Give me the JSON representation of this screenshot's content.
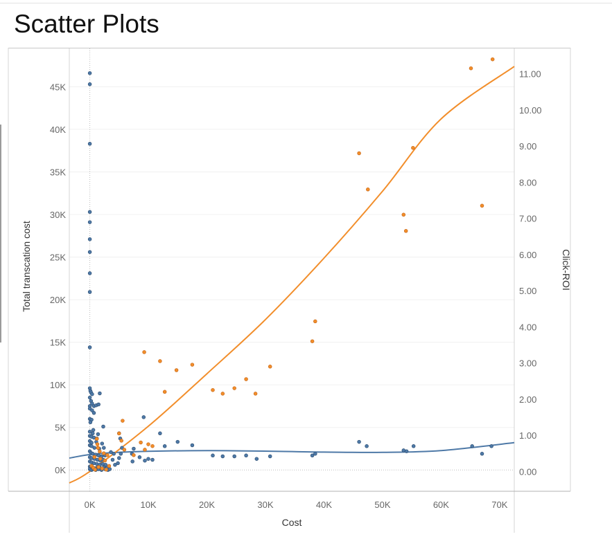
{
  "header": {
    "title": "Scatter Plots"
  },
  "chart_data": {
    "type": "scatter",
    "title": "Scatter Plots",
    "xlabel": "Cost",
    "ylabel": "Total transcation cost",
    "y2label": "Click-ROI",
    "xlim": [
      -3500,
      72500
    ],
    "ylim": [
      -2500,
      49500
    ],
    "y2lim": [
      -0.55,
      11.7
    ],
    "x_ticks": [
      0,
      10000,
      20000,
      30000,
      40000,
      50000,
      60000,
      70000
    ],
    "x_tick_labels": [
      "0K",
      "10K",
      "20K",
      "30K",
      "40K",
      "50K",
      "60K",
      "70K"
    ],
    "y_ticks": [
      0,
      5000,
      10000,
      15000,
      20000,
      25000,
      30000,
      35000,
      40000,
      45000
    ],
    "y_tick_labels": [
      "0K",
      "5K",
      "10K",
      "15K",
      "20K",
      "25K",
      "30K",
      "35K",
      "40K",
      "45K"
    ],
    "y2_ticks": [
      0,
      1,
      2,
      3,
      4,
      5,
      6,
      7,
      8,
      9,
      10,
      11
    ],
    "y2_tick_labels": [
      "0.00",
      "1.00",
      "2.00",
      "3.00",
      "4.00",
      "5.00",
      "6.00",
      "7.00",
      "8.00",
      "9.00",
      "10.00",
      "11.00"
    ],
    "grid": true,
    "legend": "none",
    "colors": {
      "blue": "#4e79a7",
      "orange": "#f28e2b",
      "blue_edge": "#2e4f73",
      "orange_edge": "#c8691a"
    },
    "series": [
      {
        "axis": "left",
        "color": "#4e79a7",
        "points": [
          [
            0,
            46600
          ],
          [
            0,
            45300
          ],
          [
            0,
            38300
          ],
          [
            0,
            30300
          ],
          [
            0,
            29100
          ],
          [
            0,
            27100
          ],
          [
            0,
            25600
          ],
          [
            0,
            23100
          ],
          [
            0,
            20900
          ],
          [
            0,
            14400
          ],
          [
            0,
            9600
          ],
          [
            100,
            9300
          ],
          [
            200,
            9100
          ],
          [
            400,
            8900
          ],
          [
            1700,
            9000
          ],
          [
            0,
            8500
          ],
          [
            200,
            8100
          ],
          [
            400,
            7800
          ],
          [
            0,
            7500
          ],
          [
            700,
            7500
          ],
          [
            1100,
            7600
          ],
          [
            1500,
            7700
          ],
          [
            0,
            7200
          ],
          [
            400,
            7000
          ],
          [
            700,
            6700
          ],
          [
            0,
            6000
          ],
          [
            300,
            5900
          ],
          [
            100,
            5600
          ],
          [
            2300,
            5100
          ],
          [
            600,
            4700
          ],
          [
            0,
            4500
          ],
          [
            500,
            4300
          ],
          [
            1400,
            4200
          ],
          [
            0,
            4000
          ],
          [
            300,
            3900
          ],
          [
            700,
            3800
          ],
          [
            1200,
            3700
          ],
          [
            0,
            3400
          ],
          [
            300,
            3200
          ],
          [
            1100,
            3300
          ],
          [
            2100,
            3100
          ],
          [
            0,
            2900
          ],
          [
            300,
            2800
          ],
          [
            800,
            2600
          ],
          [
            1600,
            2500
          ],
          [
            2400,
            2600
          ],
          [
            0,
            2200
          ],
          [
            200,
            2000
          ],
          [
            500,
            1900
          ],
          [
            1000,
            1800
          ],
          [
            1500,
            1700
          ],
          [
            2000,
            1600
          ],
          [
            2600,
            1700
          ],
          [
            0,
            1500
          ],
          [
            300,
            1400
          ],
          [
            800,
            1300
          ],
          [
            1300,
            1200
          ],
          [
            1800,
            1100
          ],
          [
            2300,
            1200
          ],
          [
            0,
            1000
          ],
          [
            300,
            900
          ],
          [
            700,
            800
          ],
          [
            1200,
            700
          ],
          [
            1700,
            600
          ],
          [
            2200,
            700
          ],
          [
            2700,
            600
          ],
          [
            0,
            400
          ],
          [
            200,
            300
          ],
          [
            500,
            300
          ],
          [
            900,
            200
          ],
          [
            1400,
            300
          ],
          [
            1900,
            200
          ],
          [
            2400,
            300
          ],
          [
            2900,
            200
          ],
          [
            0,
            100
          ],
          [
            300,
            0
          ],
          [
            600,
            100
          ],
          [
            1000,
            0
          ],
          [
            1500,
            100
          ],
          [
            2000,
            0
          ],
          [
            2600,
            100
          ],
          [
            3100,
            0
          ],
          [
            3400,
            100
          ],
          [
            3600,
            2100
          ],
          [
            3900,
            1200
          ],
          [
            4300,
            600
          ],
          [
            4100,
            1900
          ],
          [
            5000,
            4300
          ],
          [
            5200,
            3700
          ],
          [
            5500,
            2600
          ],
          [
            5300,
            1900
          ],
          [
            5000,
            1400
          ],
          [
            4800,
            800
          ],
          [
            7500,
            2500
          ],
          [
            7200,
            1900
          ],
          [
            7300,
            1000
          ],
          [
            8500,
            1500
          ],
          [
            9200,
            6200
          ],
          [
            9400,
            1100
          ],
          [
            10000,
            1300
          ],
          [
            10700,
            1200
          ],
          [
            12000,
            4300
          ],
          [
            12800,
            2800
          ],
          [
            15000,
            3300
          ],
          [
            17500,
            2900
          ],
          [
            21000,
            1700
          ],
          [
            22700,
            1600
          ],
          [
            24700,
            1600
          ],
          [
            26700,
            1700
          ],
          [
            28500,
            1300
          ],
          [
            30800,
            1600
          ],
          [
            38000,
            1700
          ],
          [
            38500,
            1900
          ],
          [
            46000,
            3300
          ],
          [
            47300,
            2800
          ],
          [
            53600,
            2300
          ],
          [
            54100,
            2200
          ],
          [
            55300,
            2800
          ],
          [
            65300,
            2800
          ],
          [
            67000,
            1900
          ],
          [
            68600,
            2800
          ]
        ]
      },
      {
        "axis": "right",
        "color": "#f28e2b",
        "points": [
          [
            1200,
            0.9
          ],
          [
            1300,
            0.75
          ],
          [
            1400,
            0.65
          ],
          [
            1700,
            0.55
          ],
          [
            2400,
            0.5
          ],
          [
            800,
            0.4
          ],
          [
            1800,
            0.35
          ],
          [
            2600,
            0.3
          ],
          [
            3000,
            0.45
          ],
          [
            300,
            0.15
          ],
          [
            600,
            0.1
          ],
          [
            900,
            0.05
          ],
          [
            1500,
            0.12
          ],
          [
            2100,
            0.08
          ],
          [
            2800,
            0.05
          ],
          [
            3300,
            0.15
          ],
          [
            5000,
            1.05
          ],
          [
            5600,
            1.4
          ],
          [
            5400,
            0.85
          ],
          [
            5900,
            0.6
          ],
          [
            7500,
            0.45
          ],
          [
            8700,
            0.8
          ],
          [
            9400,
            0.6
          ],
          [
            10000,
            0.75
          ],
          [
            10700,
            0.7
          ],
          [
            9300,
            3.3
          ],
          [
            12000,
            3.05
          ],
          [
            12800,
            2.2
          ],
          [
            14800,
            2.8
          ],
          [
            17500,
            2.95
          ],
          [
            21000,
            2.25
          ],
          [
            22700,
            2.15
          ],
          [
            24700,
            2.3
          ],
          [
            26700,
            2.55
          ],
          [
            28300,
            2.15
          ],
          [
            30800,
            2.9
          ],
          [
            38000,
            3.6
          ],
          [
            38500,
            4.15
          ],
          [
            46000,
            8.8
          ],
          [
            47500,
            7.8
          ],
          [
            53600,
            7.1
          ],
          [
            54000,
            6.65
          ],
          [
            55200,
            8.95
          ],
          [
            65100,
            11.15
          ],
          [
            67000,
            7.35
          ],
          [
            68800,
            11.4
          ]
        ]
      }
    ],
    "trend_lines": [
      {
        "axis": "left",
        "color": "#4e79a7",
        "points": [
          [
            -3500,
            1400
          ],
          [
            3000,
            2000
          ],
          [
            20000,
            2280
          ],
          [
            40000,
            2100
          ],
          [
            50000,
            2070
          ],
          [
            60000,
            2280
          ],
          [
            72500,
            3200
          ]
        ]
      },
      {
        "axis": "right",
        "color": "#f28e2b",
        "points": [
          [
            -3500,
            -0.32
          ],
          [
            0,
            0.0
          ],
          [
            10000,
            1.25
          ],
          [
            20000,
            2.7
          ],
          [
            30000,
            4.2
          ],
          [
            40000,
            5.9
          ],
          [
            50000,
            7.75
          ],
          [
            60000,
            9.75
          ],
          [
            72500,
            11.2
          ]
        ]
      }
    ]
  }
}
